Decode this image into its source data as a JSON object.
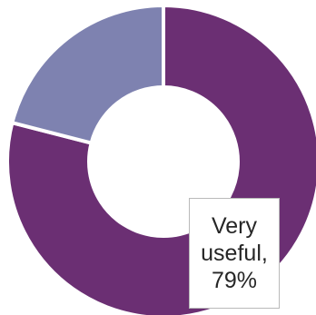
{
  "chart_data": {
    "type": "pie",
    "donut": true,
    "legend": "none",
    "slices": [
      {
        "value": 79,
        "color": "#6b2f73"
      },
      {
        "value": 21,
        "color": "#7e82b0"
      }
    ],
    "data_labels": [
      {
        "slice": 0,
        "text": "Very useful, 79%"
      }
    ]
  }
}
